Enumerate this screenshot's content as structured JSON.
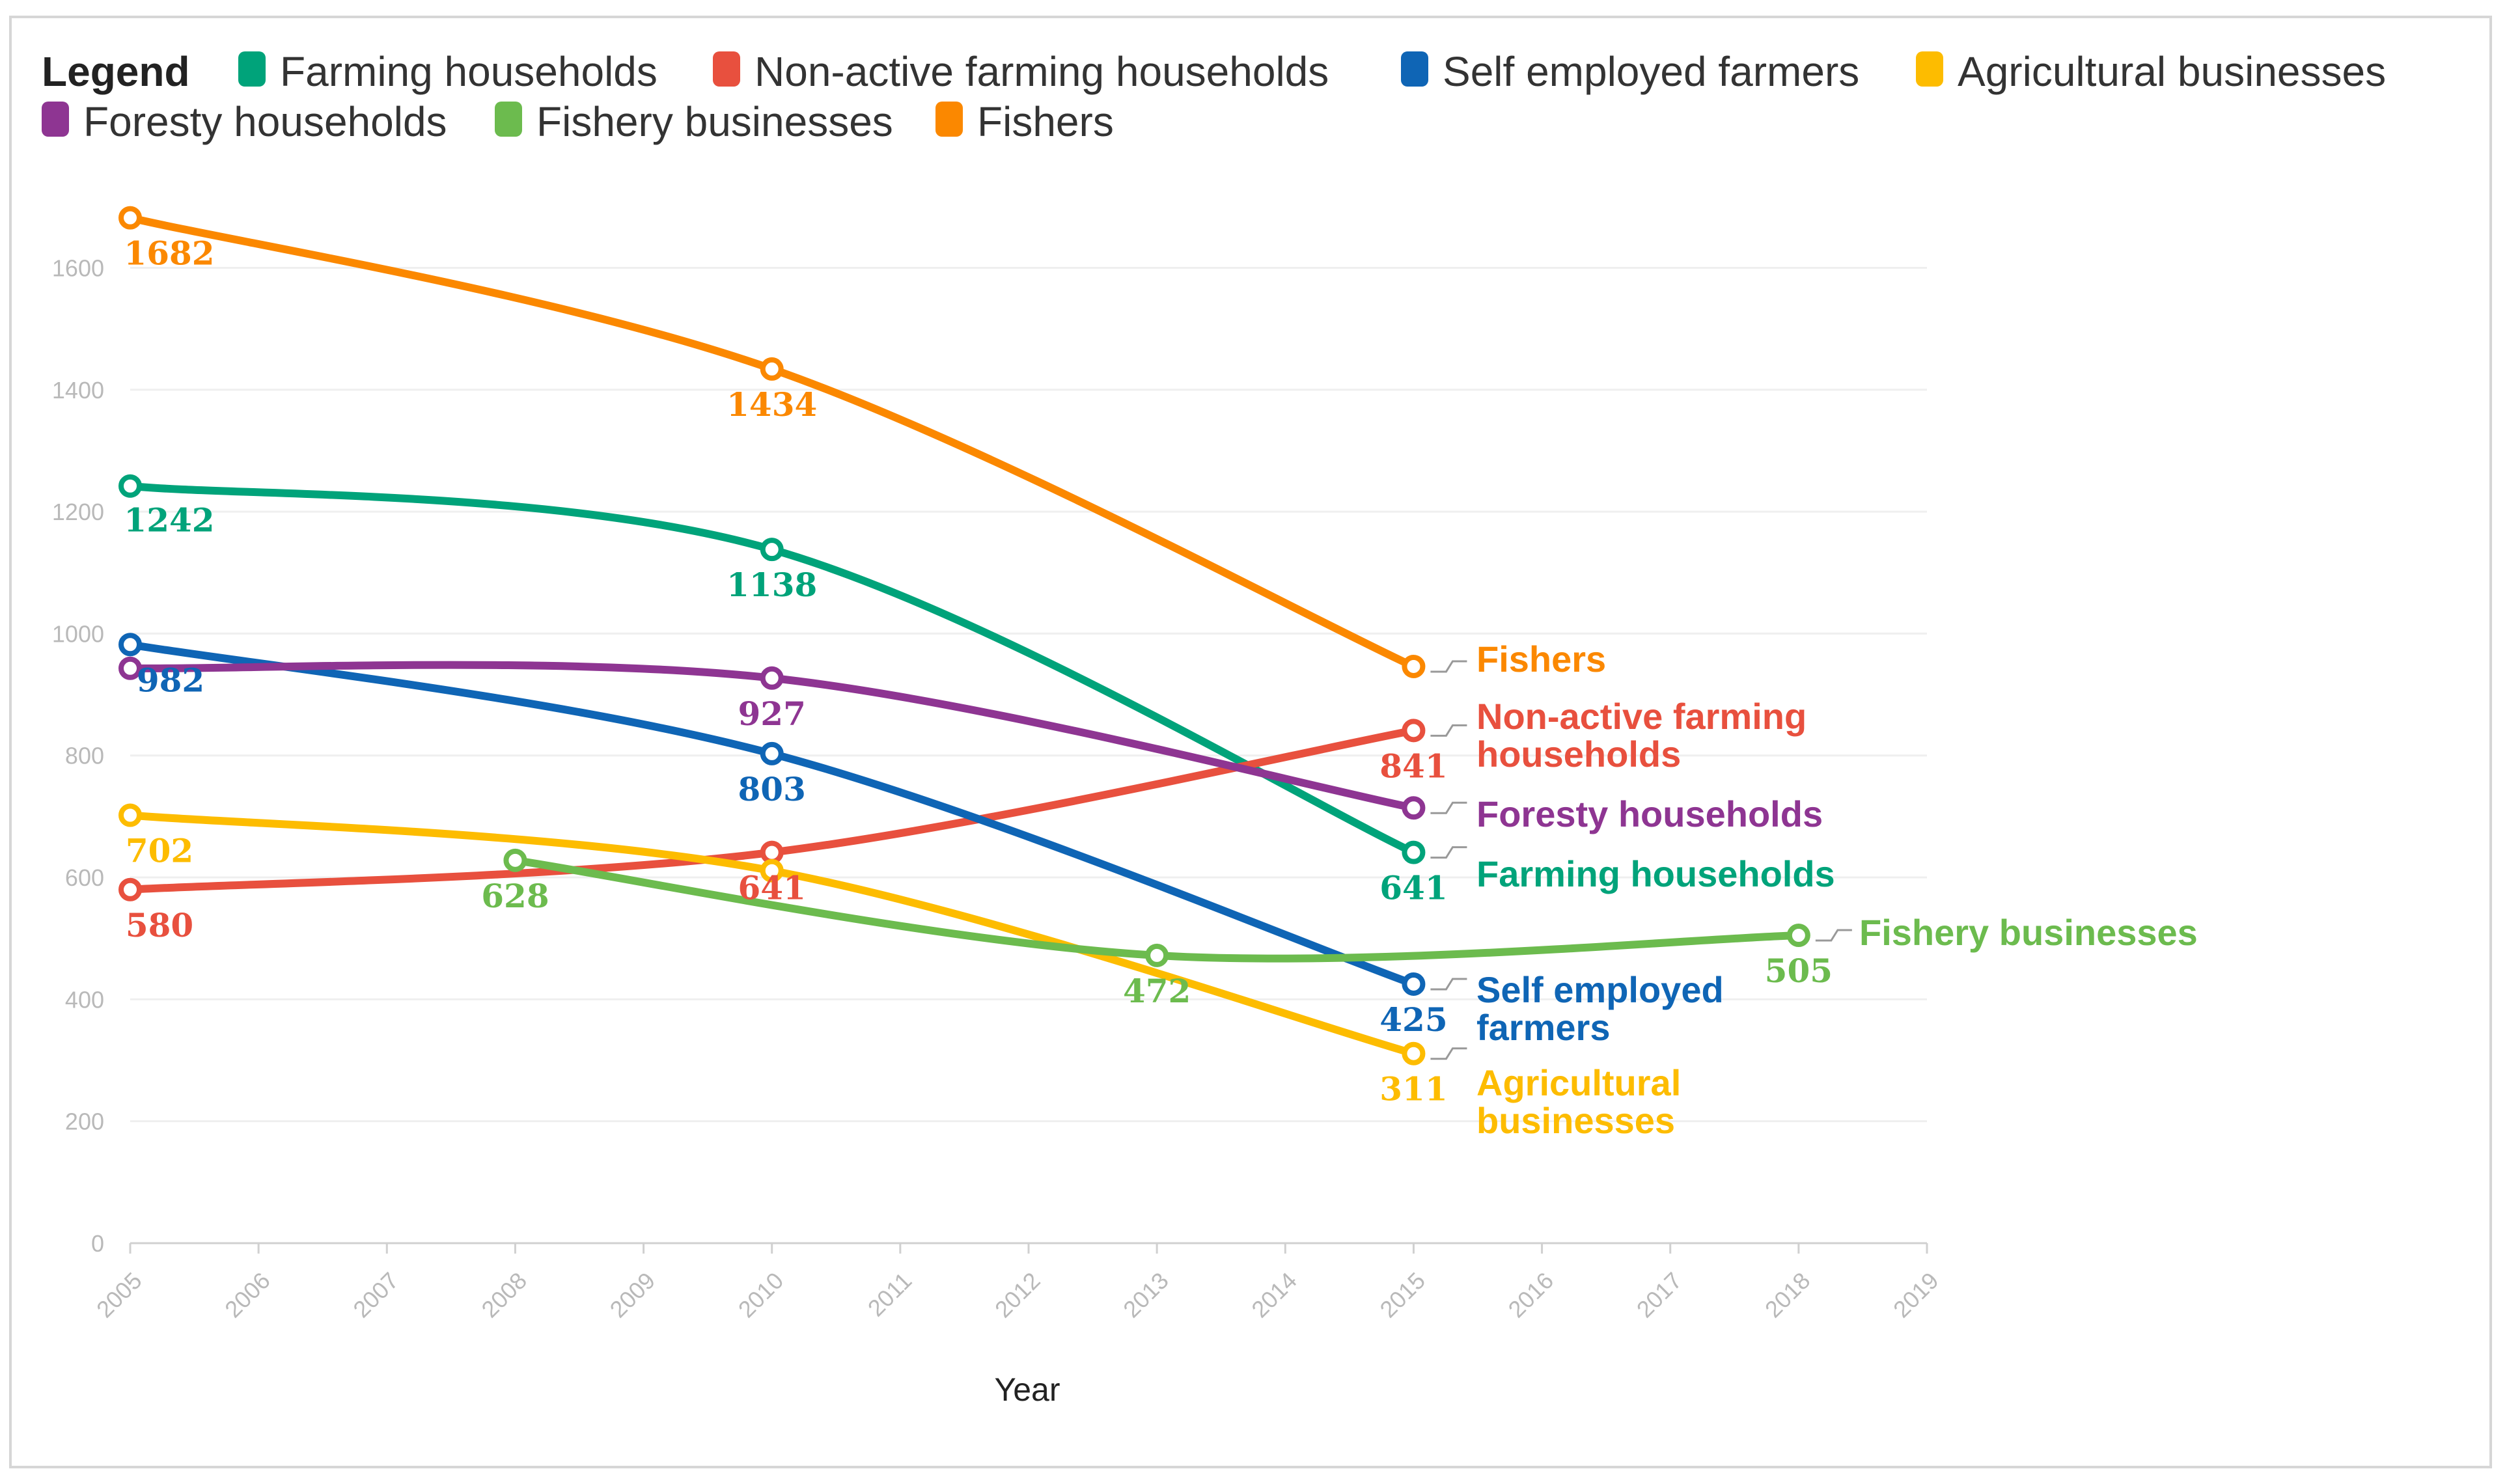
{
  "chart_data": {
    "type": "line",
    "legend_title": "Legend",
    "xlabel": "Year",
    "ylabel": "",
    "xlim": [
      2005,
      2019
    ],
    "ylim": [
      0,
      1700
    ],
    "x_ticks": [
      "2005",
      "2006",
      "2007",
      "2008",
      "2009",
      "2010",
      "2011",
      "2012",
      "2013",
      "2014",
      "2015",
      "2016",
      "2017",
      "2018",
      "2019"
    ],
    "y_ticks": [
      "0",
      "200",
      "400",
      "600",
      "800",
      "1000",
      "1200",
      "1400",
      "1600"
    ],
    "legend_order": [
      "Farming households",
      "Non-active farming households",
      "Self employed farmers",
      "Agricultural businesses",
      "Foresty households",
      "Fishery businesses",
      "Fishers"
    ],
    "series": [
      {
        "key": "farming",
        "name": "Farming households",
        "color": "#00a37a",
        "x": [
          2005,
          2010,
          2015
        ],
        "values": [
          1242,
          1138,
          641
        ],
        "labels": [
          "1242",
          "1138",
          "641"
        ],
        "end_label": [
          "Farming households"
        ]
      },
      {
        "key": "nonactive",
        "name": "Non-active farming households",
        "color": "#e8503e",
        "x": [
          2005,
          2010,
          2015
        ],
        "values": [
          580,
          641,
          841
        ],
        "labels": [
          "580",
          "641",
          "841"
        ],
        "end_label": [
          "Non-active farming",
          "households"
        ]
      },
      {
        "key": "selfemp",
        "name": "Self employed farmers",
        "color": "#0f65b5",
        "x": [
          2005,
          2010,
          2015
        ],
        "values": [
          982,
          803,
          425
        ],
        "labels": [
          "982",
          "803",
          "425"
        ],
        "end_label": [
          "Self employed",
          "farmers"
        ]
      },
      {
        "key": "agri",
        "name": "Agricultural businesses",
        "color": "#fdbc00",
        "x": [
          2005,
          2010,
          2015
        ],
        "values": [
          702,
          611,
          311
        ],
        "labels": [
          "702",
          "",
          "311"
        ],
        "end_label": [
          "Agricultural",
          "businesses"
        ]
      },
      {
        "key": "forest",
        "name": "Foresty households",
        "color": "#8e3592",
        "x": [
          2005,
          2010,
          2015
        ],
        "values": [
          943,
          927,
          714
        ],
        "labels": [
          "",
          "927",
          ""
        ],
        "end_label": [
          "Foresty households"
        ]
      },
      {
        "key": "fishbiz",
        "name": "Fishery businesses",
        "color": "#6cbb4e",
        "x": [
          2008,
          2013,
          2018
        ],
        "values": [
          628,
          472,
          505
        ],
        "labels": [
          "628",
          "472",
          "505"
        ],
        "end_label": [
          "Fishery businesses"
        ]
      },
      {
        "key": "fishers",
        "name": "Fishers",
        "color": "#fb8800",
        "x": [
          2005,
          2010,
          2015
        ],
        "values": [
          1682,
          1434,
          946
        ],
        "labels": [
          "1682",
          "1434",
          ""
        ],
        "end_label": [
          "Fishers"
        ]
      }
    ]
  }
}
